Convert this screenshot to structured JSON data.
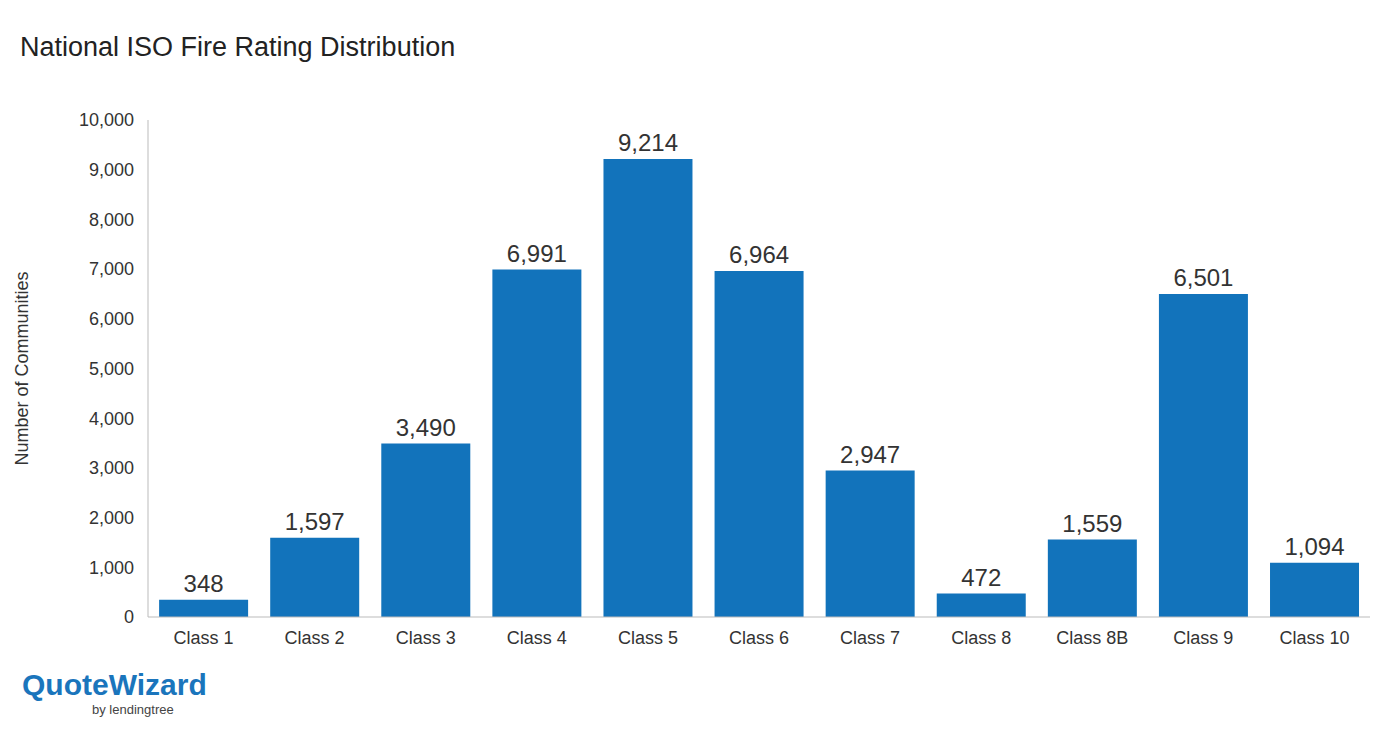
{
  "chart_data": {
    "type": "bar",
    "title": "National ISO Fire Rating Distribution",
    "y_label": "Number of Communities",
    "categories": [
      "Class 1",
      "Class 2",
      "Class 3",
      "Class 4",
      "Class 5",
      "Class 6",
      "Class 7",
      "Class 8",
      "Class 8B",
      "Class 9",
      "Class 10"
    ],
    "values": [
      348,
      1597,
      3490,
      6991,
      9214,
      6964,
      2947,
      472,
      1559,
      6501,
      1094
    ],
    "value_labels": [
      "348",
      "1,597",
      "3,490",
      "6,991",
      "9,214",
      "6,964",
      "2,947",
      "472",
      "1,559",
      "6,501",
      "1,094"
    ],
    "color": "#1273bb",
    "ylim": [
      0,
      10000
    ],
    "yticks": [
      0,
      {
        "value": 1000,
        "label": "1,000"
      },
      {
        "value": 2000,
        "label": "2,000"
      },
      {
        "value": 3000,
        "label": "3,000"
      },
      {
        "value": 4000,
        "label": "4,000"
      },
      {
        "value": 5000,
        "label": "5,000"
      },
      {
        "value": 6000,
        "label": "6,000"
      },
      {
        "value": 7000,
        "label": "7,000"
      },
      {
        "value": 8000,
        "label": "8,000"
      },
      {
        "value": 9000,
        "label": "9,000"
      },
      {
        "value": 10000,
        "label": "10,000"
      }
    ],
    "grid": false,
    "data_labels": true,
    "annotations": [
      "QuoteWizard",
      "by lendingtree"
    ]
  }
}
